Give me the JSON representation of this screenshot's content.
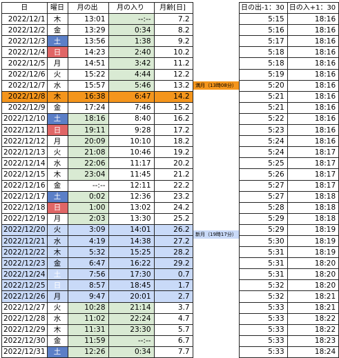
{
  "headers": {
    "date": "日",
    "day": "曜日",
    "moonrise": "月の出",
    "moonset": "月の入り",
    "age": "月齢[日]",
    "sunrise_col": "日の出-1：30",
    "sunset_col": "日の入+1：30"
  },
  "notes": {
    "full_moon": "満月（13時08分）",
    "new_moon": "新月（19時17分）"
  },
  "colors": {
    "sat_bg": "#5b7fc7",
    "sun_bg": "#e06666",
    "full_moon_bg": "#f4951c",
    "new_moon_bg": "#c9daf8",
    "green_bg": "#d9ead3"
  },
  "rows": [
    {
      "date": "2022/12/1",
      "day": "木",
      "rise": "13:01",
      "set": "--:--",
      "age": "7.2",
      "sr": "5:15",
      "ss": "18:16"
    },
    {
      "date": "2022/12/2",
      "day": "金",
      "rise": "13:29",
      "set": "0:34",
      "age": "8.2",
      "sr": "5:16",
      "ss": "18:16"
    },
    {
      "date": "2022/12/3",
      "day": "土",
      "rise": "13:56",
      "set": "1:38",
      "age": "9.2",
      "sr": "5:17",
      "ss": "18:16"
    },
    {
      "date": "2022/12/4",
      "day": "日",
      "rise": "14:23",
      "set": "2:40",
      "age": "10.2",
      "sr": "5:18",
      "ss": "18:16"
    },
    {
      "date": "2022/12/5",
      "day": "月",
      "rise": "14:51",
      "set": "3:42",
      "age": "11.2",
      "sr": "5:18",
      "ss": "18:16"
    },
    {
      "date": "2022/12/6",
      "day": "火",
      "rise": "15:22",
      "set": "4:44",
      "age": "12.2",
      "sr": "5:19",
      "ss": "18:16"
    },
    {
      "date": "2022/12/7",
      "day": "水",
      "rise": "15:57",
      "set": "5:46",
      "age": "13.2",
      "sr": "5:20",
      "ss": "18:16"
    },
    {
      "date": "2022/12/8",
      "day": "木",
      "rise": "16:38",
      "set": "6:47",
      "age": "14.2",
      "sr": "5:21",
      "ss": "18:16"
    },
    {
      "date": "2022/12/9",
      "day": "金",
      "rise": "17:24",
      "set": "7:46",
      "age": "15.2",
      "sr": "5:21",
      "ss": "18:16"
    },
    {
      "date": "2022/12/10",
      "day": "土",
      "rise": "18:16",
      "set": "8:40",
      "age": "16.2",
      "sr": "5:22",
      "ss": "18:16"
    },
    {
      "date": "2022/12/11",
      "day": "日",
      "rise": "19:11",
      "set": "9:28",
      "age": "17.2",
      "sr": "5:23",
      "ss": "18:16"
    },
    {
      "date": "2022/12/12",
      "day": "月",
      "rise": "20:09",
      "set": "10:10",
      "age": "18.2",
      "sr": "5:24",
      "ss": "18:16"
    },
    {
      "date": "2022/12/13",
      "day": "火",
      "rise": "21:08",
      "set": "10:46",
      "age": "19.2",
      "sr": "5:24",
      "ss": "18:17"
    },
    {
      "date": "2022/12/14",
      "day": "水",
      "rise": "22:06",
      "set": "11:17",
      "age": "20.2",
      "sr": "5:25",
      "ss": "18:17"
    },
    {
      "date": "2022/12/15",
      "day": "木",
      "rise": "23:04",
      "set": "11:45",
      "age": "21.2",
      "sr": "5:26",
      "ss": "18:17"
    },
    {
      "date": "2022/12/16",
      "day": "金",
      "rise": "--:--",
      "set": "12:11",
      "age": "22.2",
      "sr": "5:27",
      "ss": "18:17"
    },
    {
      "date": "2022/12/17",
      "day": "土",
      "rise": "0:02",
      "set": "12:36",
      "age": "23.2",
      "sr": "5:27",
      "ss": "18:18"
    },
    {
      "date": "2022/12/18",
      "day": "日",
      "rise": "1:00",
      "set": "13:02",
      "age": "24.2",
      "sr": "5:28",
      "ss": "18:18"
    },
    {
      "date": "2022/12/19",
      "day": "月",
      "rise": "2:03",
      "set": "13:30",
      "age": "25.2",
      "sr": "5:29",
      "ss": "18:18"
    },
    {
      "date": "2022/12/20",
      "day": "火",
      "rise": "3:09",
      "set": "14:01",
      "age": "26.2",
      "sr": "5:29",
      "ss": "18:19"
    },
    {
      "date": "2022/12/21",
      "day": "水",
      "rise": "4:19",
      "set": "14:38",
      "age": "27.2",
      "sr": "5:30",
      "ss": "18:19"
    },
    {
      "date": "2022/12/22",
      "day": "木",
      "rise": "5:32",
      "set": "15:25",
      "age": "28.2",
      "sr": "5:31",
      "ss": "18:19"
    },
    {
      "date": "2022/12/23",
      "day": "金",
      "rise": "6:47",
      "set": "16:22",
      "age": "29.2",
      "sr": "5:31",
      "ss": "18:20"
    },
    {
      "date": "2022/12/24",
      "day": "土",
      "rise": "7:56",
      "set": "17:30",
      "age": "0.7",
      "sr": "5:31",
      "ss": "18:20"
    },
    {
      "date": "2022/12/25",
      "day": "日",
      "rise": "8:57",
      "set": "18:45",
      "age": "1.7",
      "sr": "5:32",
      "ss": "18:20"
    },
    {
      "date": "2022/12/26",
      "day": "月",
      "rise": "9:47",
      "set": "20:01",
      "age": "2.7",
      "sr": "5:32",
      "ss": "18:21"
    },
    {
      "date": "2022/12/27",
      "day": "火",
      "rise": "10:28",
      "set": "21:14",
      "age": "3.7",
      "sr": "5:33",
      "ss": "18:21"
    },
    {
      "date": "2022/12/28",
      "day": "水",
      "rise": "11:02",
      "set": "22:24",
      "age": "4.7",
      "sr": "5:33",
      "ss": "18:22"
    },
    {
      "date": "2022/12/29",
      "day": "木",
      "rise": "11:31",
      "set": "23:30",
      "age": "5.7",
      "sr": "5:33",
      "ss": "18:22"
    },
    {
      "date": "2022/12/30",
      "day": "金",
      "rise": "11:59",
      "set": "--:--",
      "age": "6.7",
      "sr": "5:33",
      "ss": "18:23"
    },
    {
      "date": "2022/12/31",
      "day": "土",
      "rise": "12:26",
      "set": "0:34",
      "age": "7.7",
      "sr": "5:33",
      "ss": "18:24"
    }
  ]
}
